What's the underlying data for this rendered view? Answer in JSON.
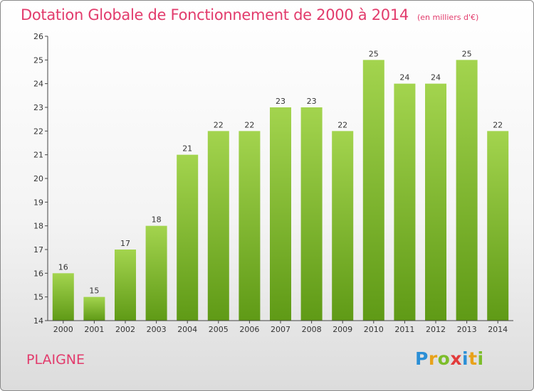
{
  "header": {
    "title": "Dotation Globale de Fonctionnement de 2000 à 2014",
    "subtitle": "(en milliers d'€)"
  },
  "commune": "PLAIGNE",
  "logo": {
    "letters": [
      "P",
      "r",
      "o",
      "x",
      "i",
      "t",
      "i"
    ],
    "colors": [
      "#2b8fd6",
      "#e8a21a",
      "#7cbd2a",
      "#e23b3b",
      "#2b8fd6",
      "#e8a21a",
      "#7cbd2a"
    ]
  },
  "chart_data": {
    "type": "bar",
    "title": "Dotation Globale de Fonctionnement de 2000 à 2014",
    "subtitle": "(en milliers d'€)",
    "categories": [
      "2000",
      "2001",
      "2002",
      "2003",
      "2004",
      "2005",
      "2006",
      "2007",
      "2008",
      "2009",
      "2010",
      "2011",
      "2012",
      "2013",
      "2014"
    ],
    "values": [
      16,
      15,
      17,
      18,
      21,
      22,
      22,
      23,
      23,
      22,
      25,
      24,
      24,
      25,
      22
    ],
    "ylim": [
      14,
      26
    ],
    "yticks": [
      14,
      15,
      16,
      17,
      18,
      19,
      20,
      21,
      22,
      23,
      24,
      25,
      26
    ],
    "grid": false,
    "bar_color": "#7ab833"
  }
}
